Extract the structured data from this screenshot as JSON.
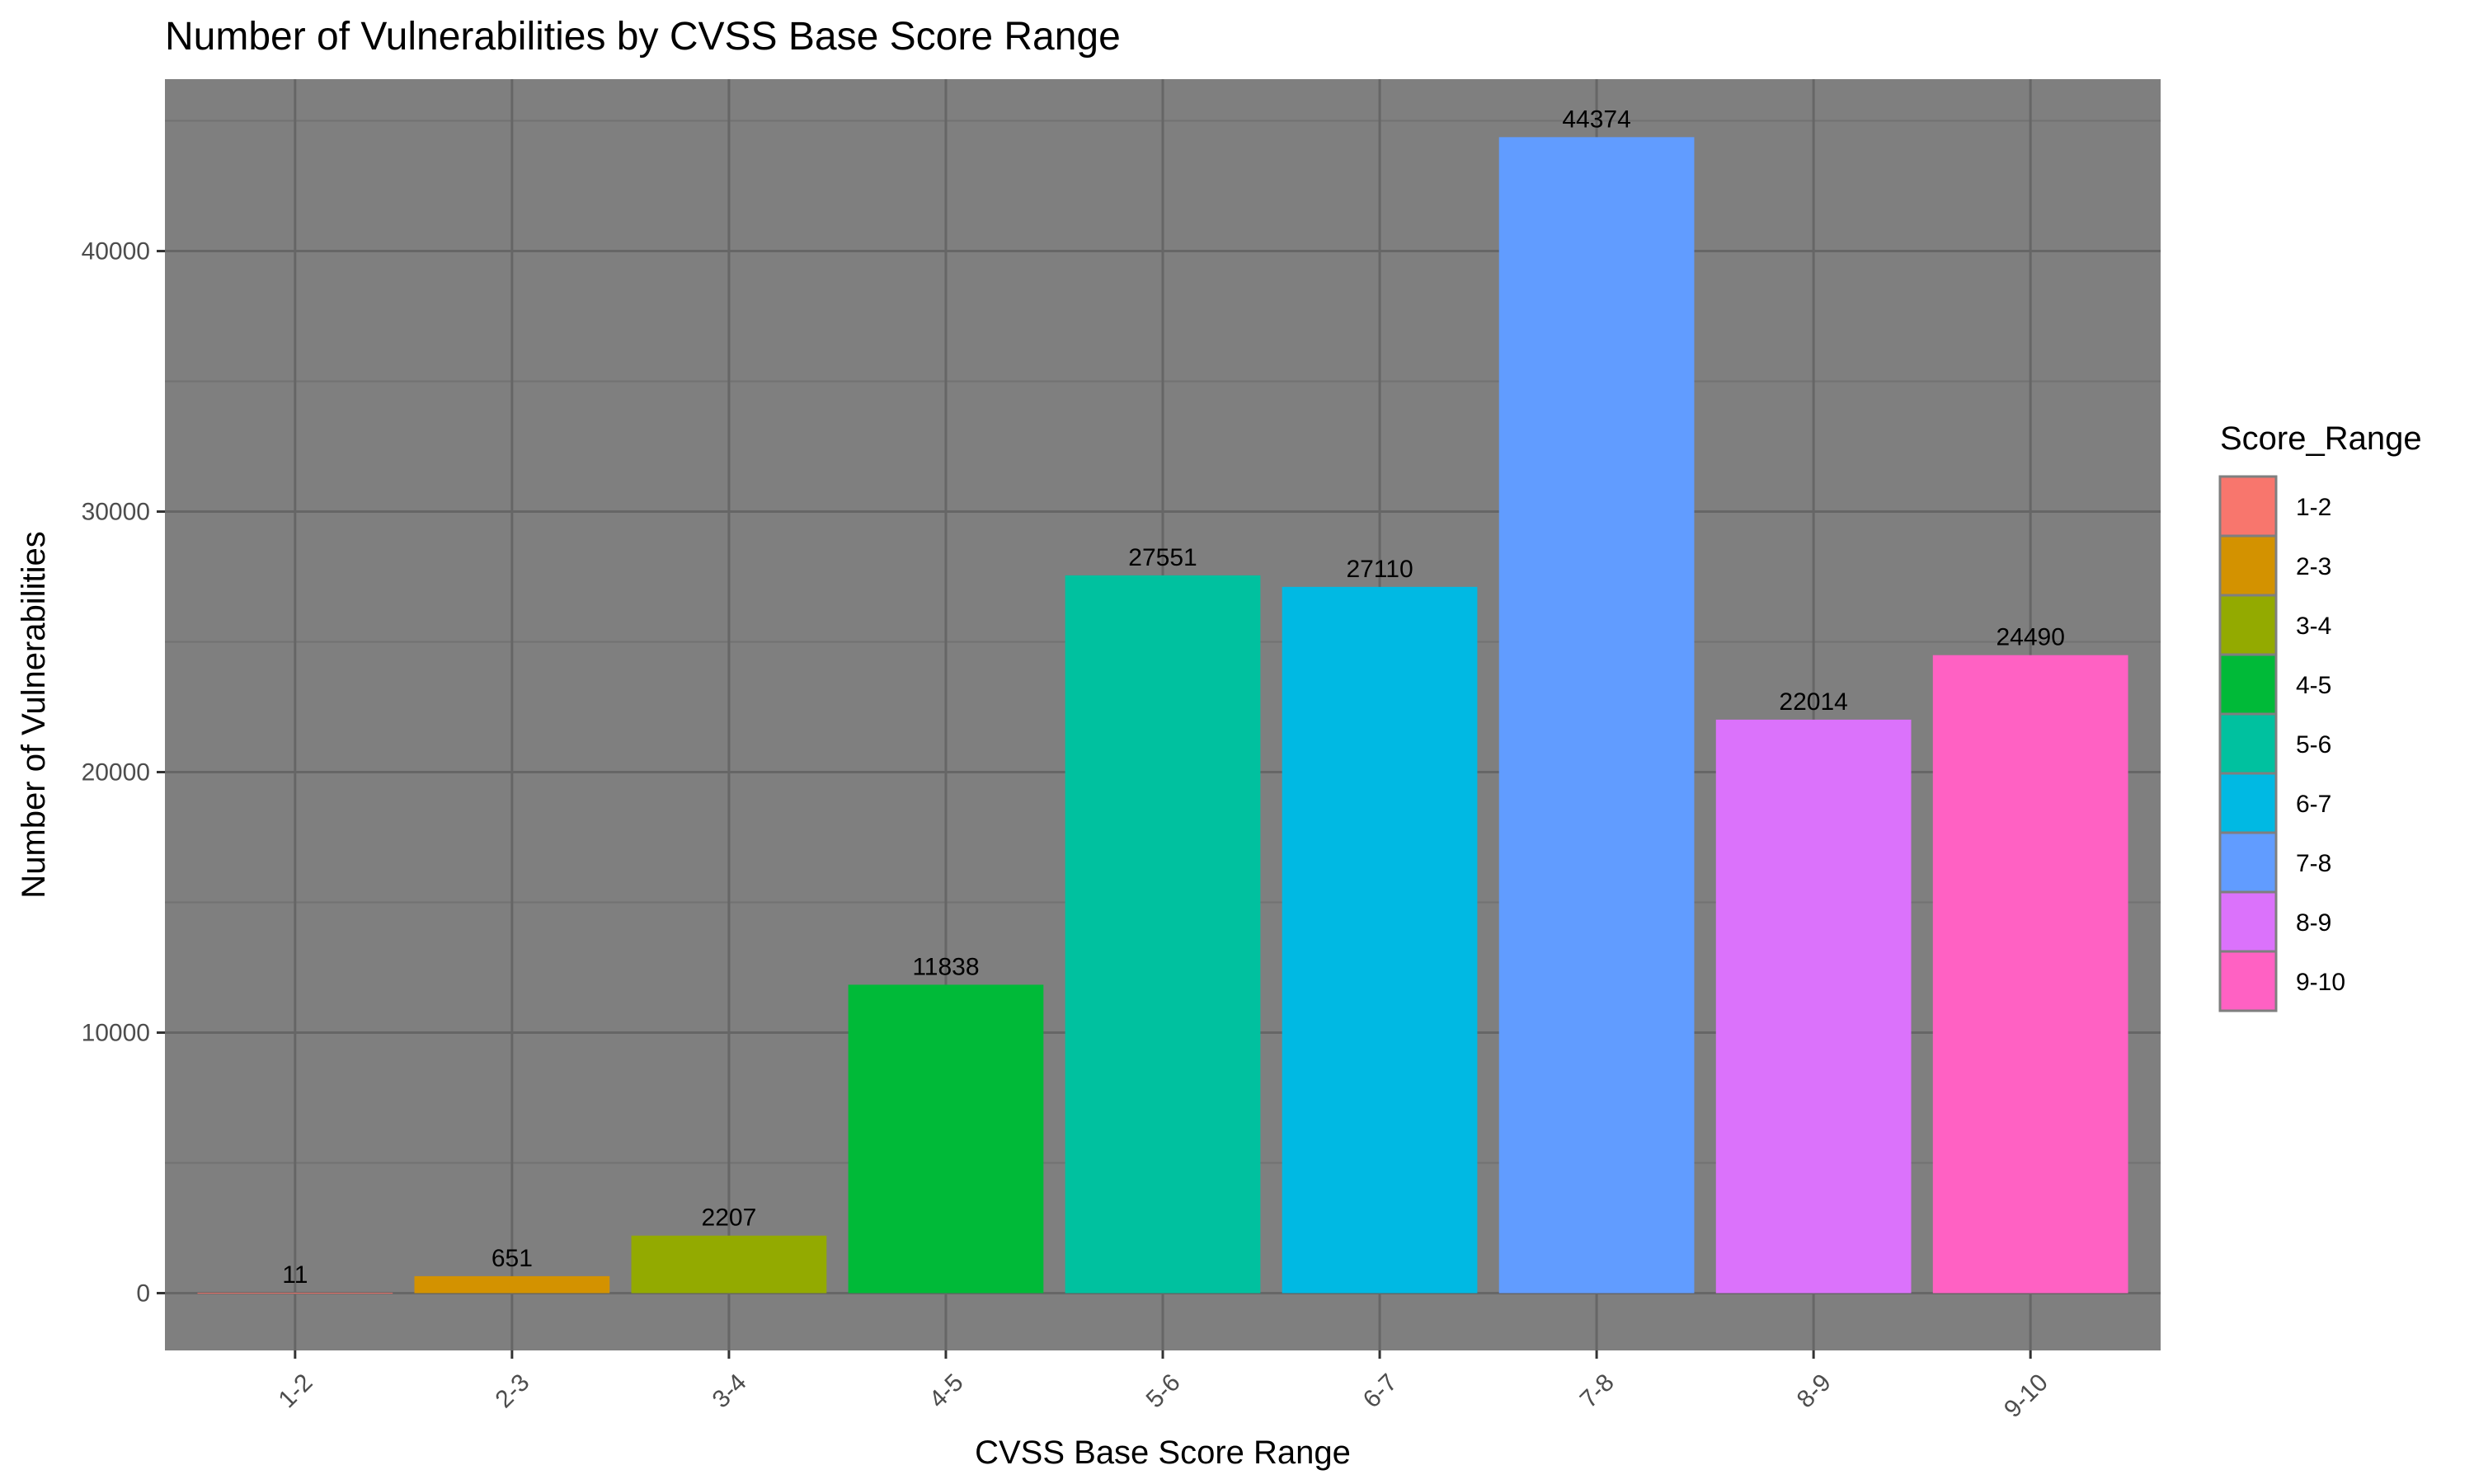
{
  "chart_data": {
    "type": "bar",
    "title": "Number of Vulnerabilities by CVSS Base Score Range",
    "xlabel": "CVSS Base Score Range",
    "ylabel": "Number of Vulnerabilities",
    "categories": [
      "1-2",
      "2-3",
      "3-4",
      "4-5",
      "5-6",
      "6-7",
      "7-8",
      "8-9",
      "9-10"
    ],
    "values": [
      11,
      651,
      2207,
      11838,
      27551,
      27110,
      44374,
      22014,
      24490
    ],
    "colors": [
      "#F8766D",
      "#D39200",
      "#93AA00",
      "#00BA38",
      "#00C19F",
      "#00B9E3",
      "#619CFF",
      "#DB72FB",
      "#FF61C3"
    ],
    "ylim": [
      -2200,
      46600
    ],
    "yticks": [
      0,
      10000,
      20000,
      30000,
      40000
    ],
    "ytick_labels": [
      "0",
      "10000",
      "20000",
      "30000",
      "40000"
    ],
    "grid": true,
    "panel_background": "#7F7F7F",
    "legend": {
      "title": "Score_Range",
      "position": "right",
      "entries": [
        "1-2",
        "2-3",
        "3-4",
        "4-5",
        "5-6",
        "6-7",
        "7-8",
        "8-9",
        "9-10"
      ]
    }
  }
}
